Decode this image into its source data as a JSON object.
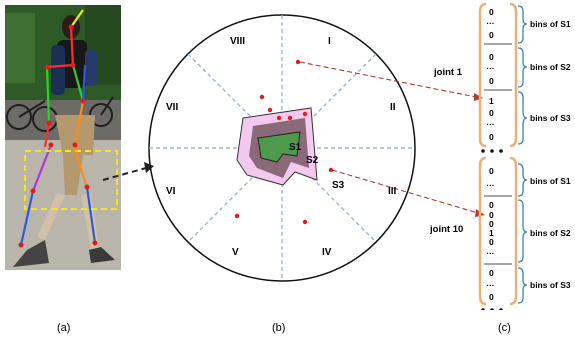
{
  "panels": {
    "a": {
      "caption": "(a)"
    },
    "b": {
      "caption": "(b)",
      "sectors": [
        "I",
        "II",
        "III",
        "IV",
        "V",
        "VI",
        "VII",
        "VIII"
      ],
      "regions": [
        "S1",
        "S2",
        "S3"
      ],
      "colors": {
        "s1": "#4c9a4a",
        "s2": "#8a6a78",
        "s3": "#f3c9ef",
        "points": "#e11c1c",
        "dashed": "#8aaad8"
      }
    },
    "c": {
      "caption": "(c)",
      "joint1": {
        "label": "joint 1",
        "bins": [
          {
            "label": "bins of S1",
            "values": [
              "0",
              "…",
              "0"
            ]
          },
          {
            "label": "bins of S2",
            "values": [
              "0",
              "…",
              "0"
            ]
          },
          {
            "label": "bins of S3",
            "values": [
              "1",
              "0",
              "…",
              "0"
            ]
          }
        ]
      },
      "joint10": {
        "label": "joint 10",
        "bins": [
          {
            "label": "bins of S1",
            "values": [
              "0",
              "…"
            ]
          },
          {
            "label": "bins of S2",
            "values": [
              "0",
              "0",
              "0",
              "1",
              "0",
              "…"
            ]
          },
          {
            "label": "bins of S3",
            "values": [
              "0",
              "…",
              "0"
            ]
          }
        ]
      },
      "colors": {
        "bracket": "#e8b07a",
        "brace": "#3f7fc8",
        "arrow": "#b33a2a"
      }
    }
  }
}
